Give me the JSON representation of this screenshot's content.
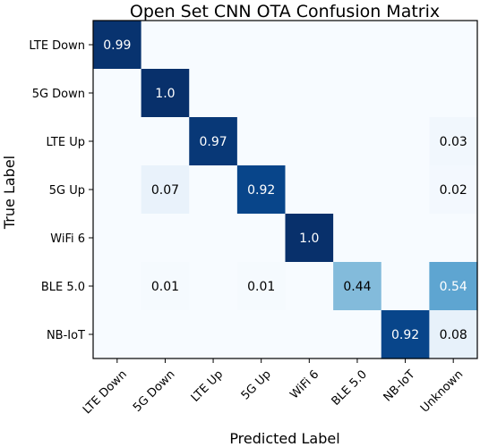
{
  "chart_data": {
    "type": "heatmap",
    "title": "Open Set CNN OTA Confusion Matrix",
    "xlabel": "Predicted Label",
    "ylabel": "True Label",
    "x_categories": [
      "LTE Down",
      "5G Down",
      "LTE Up",
      "5G Up",
      "WiFi 6",
      "BLE 5.0",
      "NB-IoT",
      "Unknown"
    ],
    "y_categories": [
      "LTE Down",
      "5G Down",
      "LTE Up",
      "5G Up",
      "WiFi 6",
      "BLE 5.0",
      "NB-IoT"
    ],
    "values": [
      [
        0.99,
        0,
        0,
        0,
        0,
        0,
        0,
        0
      ],
      [
        0,
        1.0,
        0,
        0,
        0,
        0,
        0,
        0
      ],
      [
        0,
        0,
        0.97,
        0,
        0,
        0,
        0,
        0.03
      ],
      [
        0,
        0.07,
        0,
        0.92,
        0,
        0,
        0,
        0.02
      ],
      [
        0,
        0,
        0,
        0,
        1.0,
        0,
        0,
        0
      ],
      [
        0,
        0.01,
        0,
        0.01,
        0,
        0.44,
        0,
        0.54
      ],
      [
        0,
        0,
        0,
        0,
        0,
        0,
        0.92,
        0.08
      ]
    ],
    "cell_labels": [
      [
        "0.99",
        "",
        "",
        "",
        "",
        "",
        "",
        ""
      ],
      [
        "",
        "1.0",
        "",
        "",
        "",
        "",
        "",
        ""
      ],
      [
        "",
        "",
        "0.97",
        "",
        "",
        "",
        "",
        "0.03"
      ],
      [
        "",
        "0.07",
        "",
        "0.92",
        "",
        "",
        "",
        "0.02"
      ],
      [
        "",
        "",
        "",
        "",
        "1.0",
        "",
        "",
        ""
      ],
      [
        "",
        "0.01",
        "",
        "0.01",
        "",
        "0.44",
        "",
        "0.54"
      ],
      [
        "",
        "",
        "",
        "",
        "",
        "",
        "0.92",
        "0.08"
      ]
    ],
    "colormap": "Blues",
    "value_range": [
      0,
      1
    ]
  }
}
